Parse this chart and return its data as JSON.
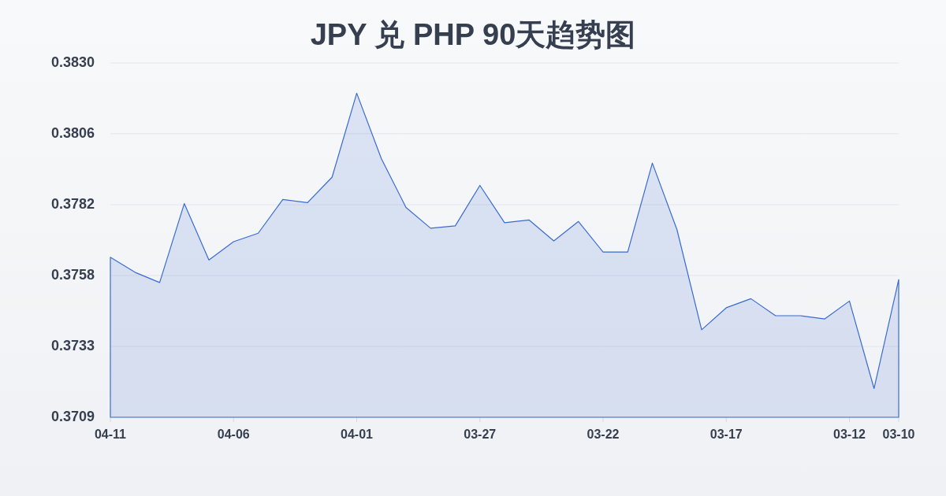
{
  "chart_data": {
    "type": "area",
    "title": "JPY 兑 PHP 90天趋势图",
    "categories": [
      "04-11",
      null,
      null,
      null,
      null,
      "04-06",
      null,
      null,
      null,
      null,
      "04-01",
      null,
      null,
      null,
      null,
      "03-27",
      null,
      null,
      null,
      null,
      "03-22",
      null,
      null,
      null,
      null,
      "03-17",
      null,
      null,
      null,
      null,
      "03-12",
      null,
      "03-10"
    ],
    "values": [
      0.37638,
      0.37587,
      0.37552,
      0.37821,
      0.37629,
      0.37691,
      0.3772,
      0.37835,
      0.37824,
      0.37911,
      0.38197,
      0.37974,
      0.37808,
      0.37737,
      0.37745,
      0.37883,
      0.37756,
      0.37765,
      0.37694,
      0.3776,
      0.37656,
      0.37656,
      0.37959,
      0.37732,
      0.37391,
      0.37466,
      0.37497,
      0.37439,
      0.37439,
      0.37428,
      0.37489,
      0.37191,
      0.37562
    ],
    "color": "#3a6bd0",
    "ylim": [
      0.37093,
      0.383
    ],
    "yticks": [
      {
        "value": 0.37093,
        "label": "0.3709"
      },
      {
        "value": 0.37334,
        "label": "0.3733"
      },
      {
        "value": 0.37576,
        "label": "0.3758"
      },
      {
        "value": 0.37817,
        "label": "0.3782"
      },
      {
        "value": 0.38059,
        "label": "0.3806"
      },
      {
        "value": 0.383,
        "label": "0.3830"
      }
    ],
    "grid": "y"
  }
}
